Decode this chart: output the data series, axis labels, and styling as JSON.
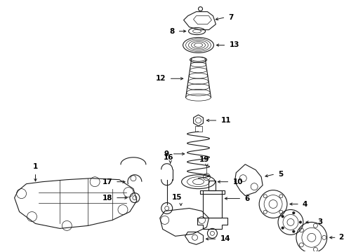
{
  "bg_color": "#ffffff",
  "line_color": "#1a1a1a",
  "label_color": "#000000",
  "figsize": [
    4.9,
    3.6
  ],
  "dpi": 100,
  "lw": 0.8,
  "lw_thin": 0.5,
  "fontsize": 7,
  "fontsize_bold": 7.5
}
